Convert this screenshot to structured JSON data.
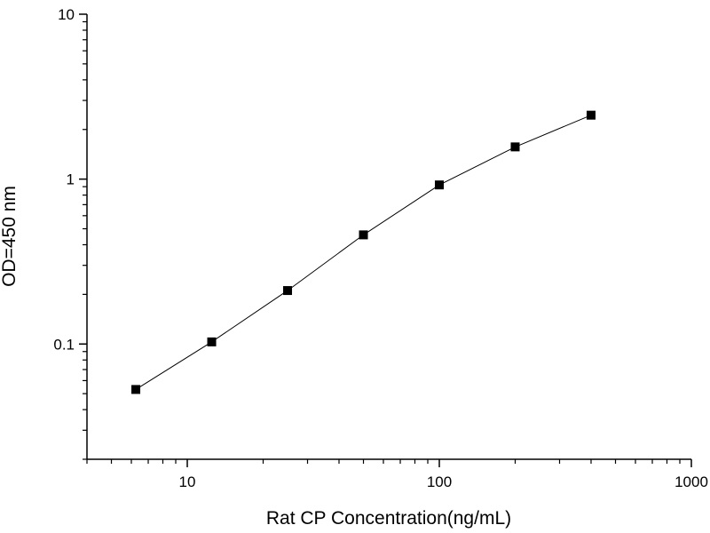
{
  "chart_data": {
    "type": "line",
    "xlabel": "Rat CP Concentration(ng/mL)",
    "ylabel": "OD=450 nm",
    "x_scale": "log",
    "y_scale": "log",
    "xlim": [
      4,
      1000
    ],
    "ylim": [
      0.02,
      10
    ],
    "x_ticks": [
      {
        "value": 10,
        "label": "10"
      },
      {
        "value": 100,
        "label": "100"
      },
      {
        "value": 1000,
        "label": "1000"
      }
    ],
    "y_ticks": [
      {
        "value": 0.1,
        "label": "0.1"
      },
      {
        "value": 1,
        "label": "1"
      },
      {
        "value": 10,
        "label": "10"
      }
    ],
    "grid": false,
    "legend": "none",
    "marker": "square",
    "colors": {
      "line": "#000000",
      "marker": "#000000",
      "axis": "#000000"
    },
    "series": [
      {
        "x": [
          6.25,
          12.5,
          25,
          50,
          100,
          200,
          400
        ],
        "y": [
          0.053,
          0.103,
          0.211,
          0.459,
          0.922,
          1.568,
          2.442
        ]
      }
    ]
  }
}
